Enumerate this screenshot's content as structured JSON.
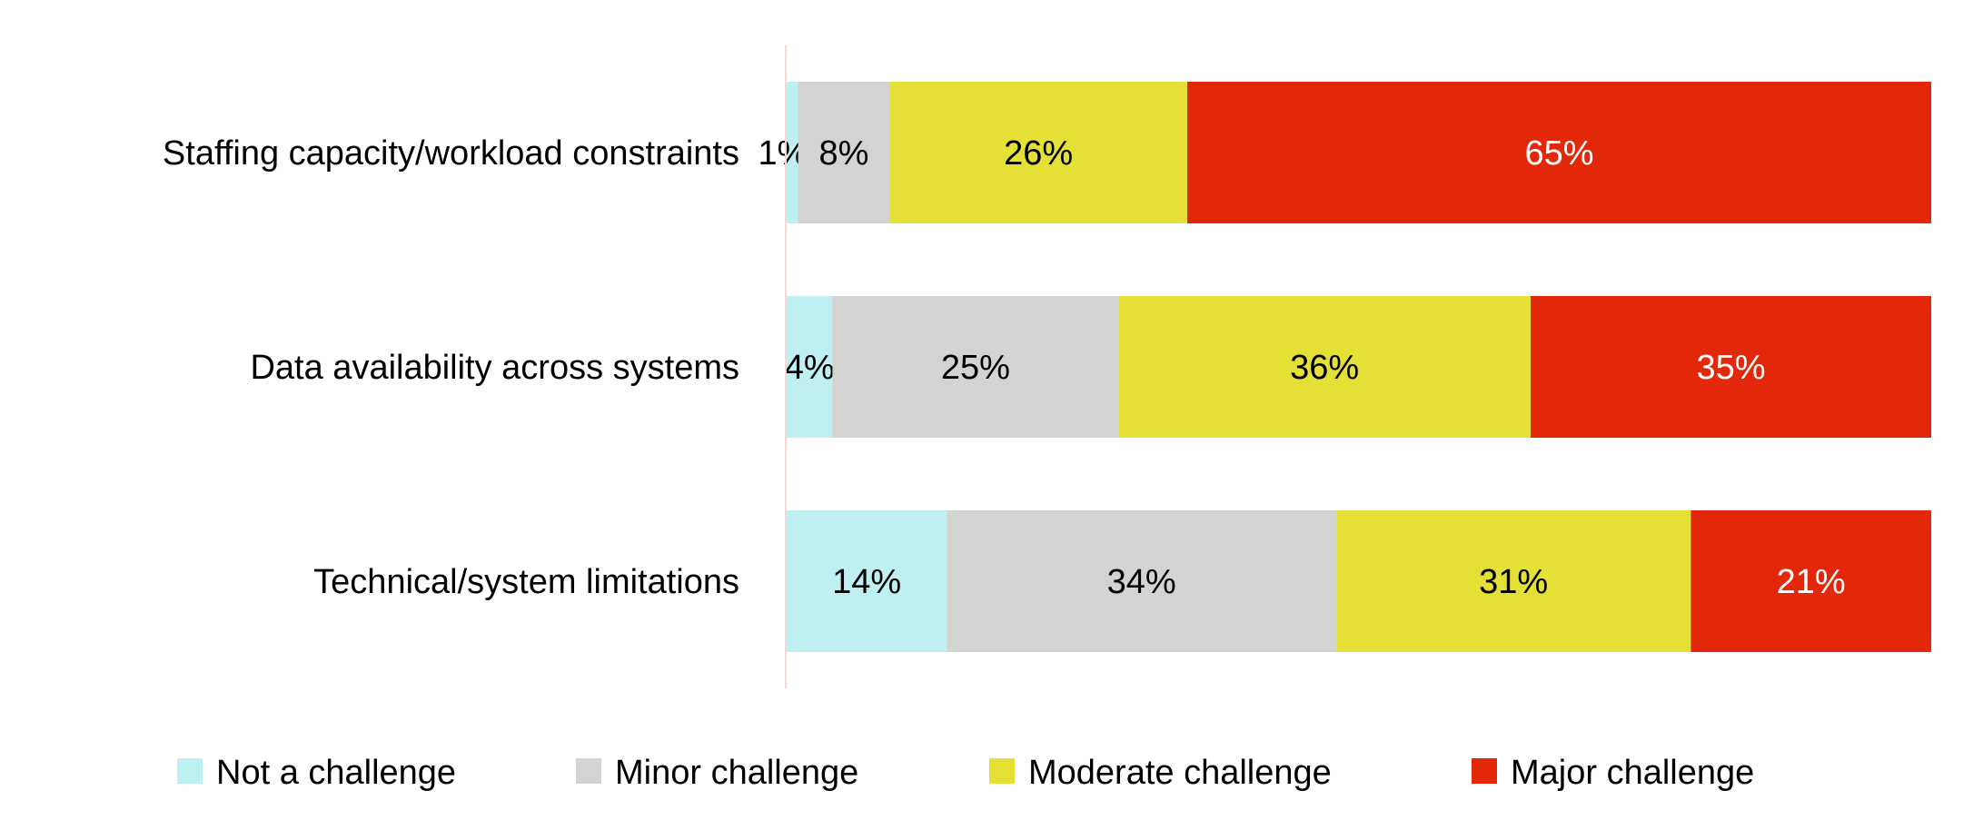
{
  "chart_data": {
    "type": "bar",
    "orientation": "horizontal",
    "stacked": true,
    "title": "",
    "xlabel": "",
    "ylabel": "",
    "xlim": [
      0,
      100
    ],
    "grid": false,
    "legend_position": "bottom",
    "categories": [
      "Staffing capacity/workload constraints",
      "Data availability across systems",
      "Technical/system limitations"
    ],
    "series": [
      {
        "name": "Not a challenge",
        "color": "#BEEFF1",
        "label_color": "#000000",
        "values": [
          1,
          4,
          14
        ]
      },
      {
        "name": "Minor challenge",
        "color": "#D3D3D2",
        "label_color": "#000000",
        "values": [
          8,
          25,
          34
        ]
      },
      {
        "name": "Moderate challenge",
        "color": "#E4E036",
        "label_color": "#000000",
        "values": [
          26,
          36,
          31
        ]
      },
      {
        "name": "Major challenge",
        "color": "#E2270B",
        "label_color": "#FFFFFF",
        "values": [
          65,
          35,
          21
        ]
      }
    ],
    "value_suffix": "%",
    "axis_color": "#F9D5D0"
  }
}
